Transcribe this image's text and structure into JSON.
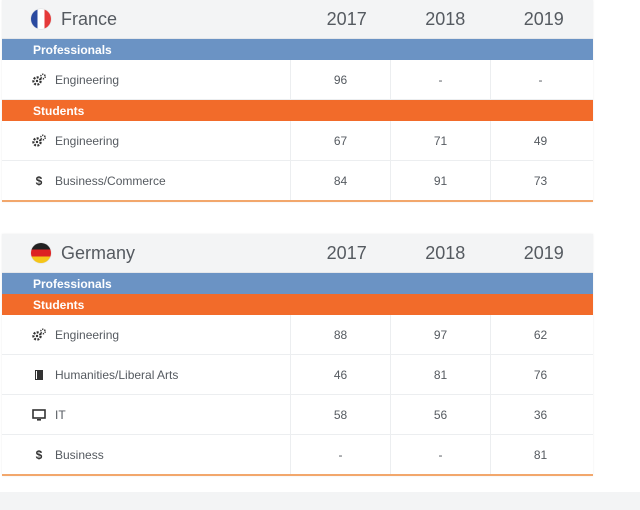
{
  "years": [
    "2017",
    "2018",
    "2019"
  ],
  "sections": {
    "professionals": "Professionals",
    "students": "Students"
  },
  "countries": [
    {
      "name": "France",
      "flag": "flag-france",
      "professionals": [
        {
          "icon": "gears-icon",
          "label": "Engineering",
          "values": [
            "96",
            "-",
            "-"
          ]
        }
      ],
      "students": [
        {
          "icon": "gears-icon",
          "label": "Engineering",
          "values": [
            "67",
            "71",
            "49"
          ]
        },
        {
          "icon": "dollar-icon",
          "label": "Business/Commerce",
          "values": [
            "84",
            "91",
            "73"
          ]
        }
      ]
    },
    {
      "name": "Germany",
      "flag": "flag-germany",
      "professionals": [],
      "students": [
        {
          "icon": "gears-icon",
          "label": "Engineering",
          "values": [
            "88",
            "97",
            "62"
          ]
        },
        {
          "icon": "book-icon",
          "label": "Humanities/Liberal Arts",
          "values": [
            "46",
            "81",
            "76"
          ]
        },
        {
          "icon": "monitor-icon",
          "label": "IT",
          "values": [
            "58",
            "56",
            "36"
          ]
        },
        {
          "icon": "dollar-icon",
          "label": "Business",
          "values": [
            "-",
            "-",
            "81"
          ]
        }
      ]
    }
  ],
  "colors": {
    "professionals_bar": "#6b93c4",
    "students_bar": "#f26b2a"
  }
}
